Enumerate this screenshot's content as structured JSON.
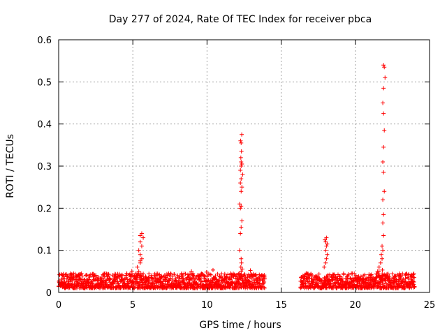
{
  "chart_data": {
    "type": "scatter",
    "title": "Day 277 of 2024, Rate Of TEC Index for receiver pbca",
    "xlabel": "GPS time / hours",
    "ylabel": "ROTI / TECUs",
    "xlim": [
      0,
      25
    ],
    "ylim": [
      0,
      0.6
    ],
    "xticks": [
      0,
      5,
      10,
      15,
      20,
      25
    ],
    "xtick_labels": [
      "0",
      "5",
      "10",
      "15",
      "20",
      "25"
    ],
    "yticks": [
      0,
      0.1,
      0.2,
      0.3,
      0.4,
      0.5,
      0.6
    ],
    "ytick_labels": [
      "0",
      "0.1",
      "0.2",
      "0.3",
      "0.4",
      "0.5",
      "0.6"
    ],
    "grid": true,
    "marker": "+",
    "color": "#ff0000",
    "baseline": {
      "segments": [
        [
          0,
          13.9
        ],
        [
          16.3,
          24.0
        ]
      ],
      "typical_range": [
        0.01,
        0.045
      ]
    },
    "spikes": [
      {
        "x": [
          5.3,
          5.5,
          5.6,
          5.5,
          5.4,
          5.6,
          5.5,
          5.7,
          5.5,
          5.6,
          5.4,
          5.5
        ],
        "y": [
          0.06,
          0.07,
          0.08,
          0.09,
          0.1,
          0.11,
          0.12,
          0.13,
          0.135,
          0.14,
          0.05,
          0.075
        ]
      },
      {
        "x": [
          8.95,
          9.05
        ],
        "y": [
          0.05,
          0.045
        ]
      },
      {
        "x": [
          12.2,
          12.25,
          12.3,
          12.35,
          12.25,
          12.3,
          12.2,
          12.3,
          12.35,
          12.25,
          12.3,
          12.4,
          12.25,
          12.3,
          12.35,
          12.3,
          12.28,
          12.32,
          12.3,
          12.26,
          12.34,
          12.3,
          12.28,
          12.32,
          12.3
        ],
        "y": [
          0.1,
          0.14,
          0.155,
          0.17,
          0.2,
          0.205,
          0.21,
          0.24,
          0.25,
          0.26,
          0.27,
          0.28,
          0.29,
          0.3,
          0.305,
          0.31,
          0.32,
          0.335,
          0.355,
          0.36,
          0.375,
          0.05,
          0.06,
          0.07,
          0.08
        ]
      },
      {
        "x": [
          17.9,
          18.0,
          18.05,
          18.1,
          18.0,
          18.05,
          18.1,
          18.0,
          17.95,
          18.05
        ],
        "y": [
          0.06,
          0.07,
          0.08,
          0.09,
          0.1,
          0.11,
          0.115,
          0.12,
          0.125,
          0.13
        ]
      },
      {
        "x": [
          21.5,
          21.6,
          21.7,
          21.8,
          21.75,
          21.85,
          21.8,
          21.9,
          21.85,
          21.9,
          21.85,
          21.95,
          21.9,
          21.85,
          21.9,
          21.95,
          21.9,
          21.85,
          21.9,
          22.0,
          21.95,
          21.9,
          21.8,
          21.7,
          21.6
        ],
        "y": [
          0.05,
          0.06,
          0.07,
          0.08,
          0.09,
          0.1,
          0.11,
          0.135,
          0.165,
          0.185,
          0.22,
          0.24,
          0.285,
          0.31,
          0.345,
          0.385,
          0.425,
          0.45,
          0.485,
          0.51,
          0.535,
          0.54,
          0.04,
          0.03,
          0.05
        ]
      }
    ]
  }
}
